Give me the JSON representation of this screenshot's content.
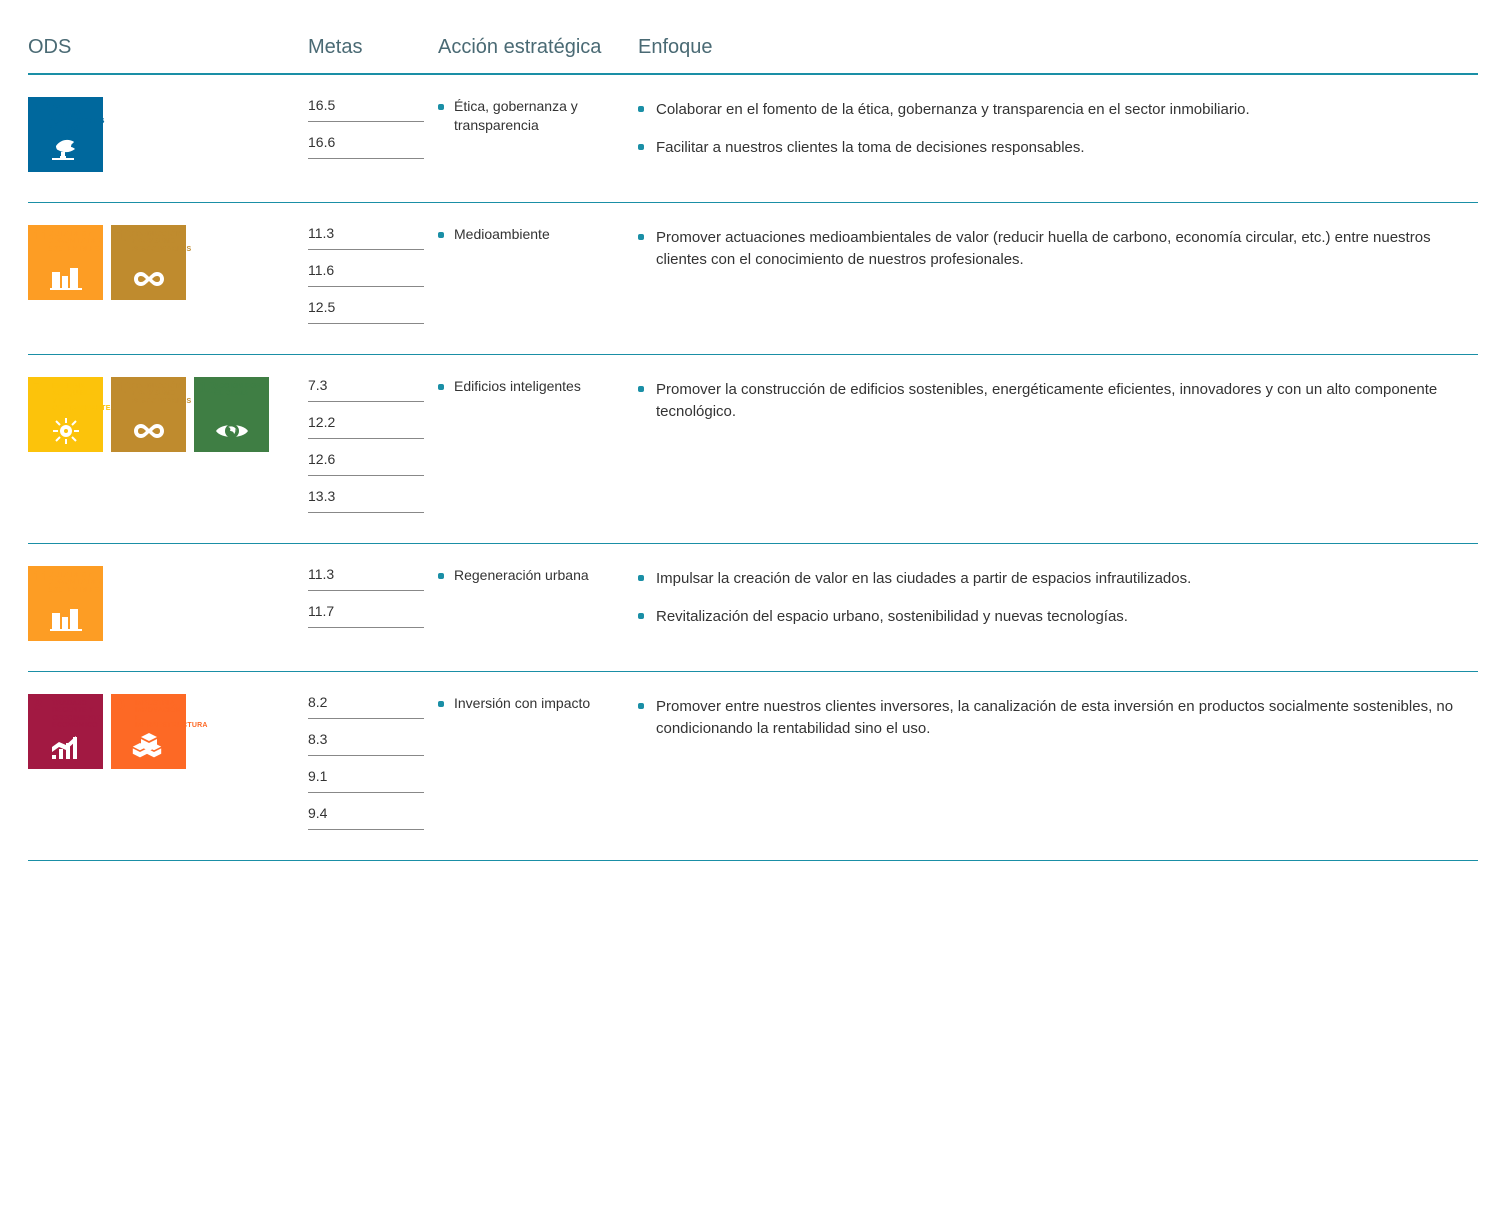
{
  "columns": {
    "ods": "ODS",
    "metas": "Metas",
    "accion": "Acción estratégica",
    "enfoque": "Enfoque"
  },
  "sdg_defs": {
    "7": {
      "color": "#fcc30b",
      "label": "ENERGÍA ASEQUIBLE Y NO CONTAMINANTE"
    },
    "8": {
      "color": "#a21942",
      "label": "TRABAJO DECENTE Y CRECIMIENTO ECONÓMICO"
    },
    "9": {
      "color": "#fd6925",
      "label": "INDUSTRIA, INNOVACIÓN E INFRAESTRUCTURA"
    },
    "11": {
      "color": "#fd9d24",
      "label": "CIUDADES Y COMUNIDADES SOSTENIBLES"
    },
    "12": {
      "color": "#bf8b2e",
      "label": "PRODUCCIÓN Y CONSUMO RESPONSABLES"
    },
    "13": {
      "color": "#3f7e44",
      "label": "ACCIÓN POR EL CLIMA"
    },
    "16": {
      "color": "#00689d",
      "label": "PAZ, JUSTICIA E INSTITUCIONES SÓLIDAS"
    }
  },
  "rows": [
    {
      "sdgs": [
        "16"
      ],
      "metas": [
        "16.5",
        "16.6"
      ],
      "accion": "Ética, gobernanza y transparencia",
      "enfoque": [
        "Colaborar en el fomento de la ética, gobernanza y transparencia en el sector inmobiliario.",
        "Facilitar a nuestros clientes la toma de decisiones responsables."
      ],
      "enfoque_center": false
    },
    {
      "sdgs": [
        "11",
        "12"
      ],
      "metas": [
        "11.3",
        "11.6",
        "12.5"
      ],
      "accion": "Medioambiente",
      "enfoque": [
        "Promover actuaciones medioambientales de valor (reducir huella de carbono, economía circular, etc.) entre nuestros clientes con el conocimiento de nuestros profesionales."
      ],
      "enfoque_center": true
    },
    {
      "sdgs": [
        "7",
        "12",
        "13"
      ],
      "metas": [
        "7.3",
        "12.2",
        "12.6",
        "13.3"
      ],
      "accion": "Edificios inteligentes",
      "enfoque": [
        "Promover la construcción de edificios sostenibles, energéticamente eficientes, innovadores y con un alto componente tecnológico."
      ],
      "enfoque_center": true
    },
    {
      "sdgs": [
        "11"
      ],
      "metas": [
        "11.3",
        "11.7"
      ],
      "accion": "Regeneración urbana",
      "enfoque": [
        "Impulsar la creación de valor en las ciudades a partir de espacios infrautilizados.",
        "Revitalización del espacio urbano, sostenibilidad y nuevas tecnologías."
      ],
      "enfoque_center": false
    },
    {
      "sdgs": [
        "8",
        "9"
      ],
      "metas": [
        "8.2",
        "8.3",
        "9.1",
        "9.4"
      ],
      "accion": "Inversión con impacto",
      "enfoque": [
        "Promover entre nuestros clientes inversores, la canalización de esta inversión en productos socialmente sostenibles, no condicionando la rentabilidad sino el uso."
      ],
      "enfoque_center": true
    }
  ]
}
